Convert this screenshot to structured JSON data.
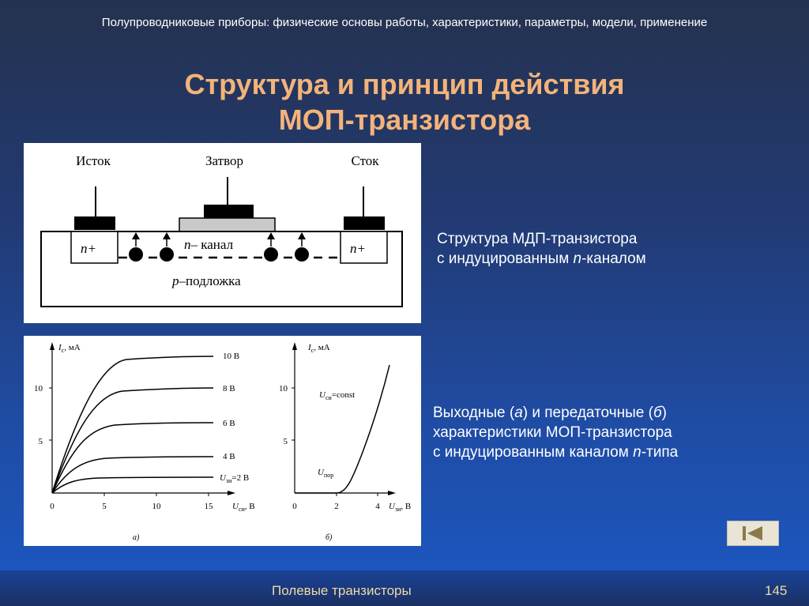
{
  "header": {
    "subtitle": "Полупроводниковые приборы: физические основы работы, характеристики, параметры, модели,  применение"
  },
  "title": {
    "line1": "Структура и принцип действия",
    "line2": "МОП-транзистора"
  },
  "structure": {
    "source_label": "Исток",
    "gate_label": "Затвор",
    "drain_label": "Сток",
    "n_left": "n+",
    "n_right": "n+",
    "channel_n": "n",
    "channel_label": "– канал",
    "substrate_p": "p",
    "substrate_label": "–подложка"
  },
  "caption1": {
    "line1": "Структура МДП-транзистора",
    "line2_prefix": "с индуцированным ",
    "line2_italic": "n",
    "line2_suffix": "-каналом"
  },
  "caption2": {
    "line1_prefix": "Выходные (",
    "line1_a": "а",
    "line1_mid": ") и передаточные (",
    "line1_b": "б",
    "line1_suffix": ")",
    "line2": "характеристики  МОП-транзистора",
    "line3_prefix": "с индуцированным каналом ",
    "line3_italic": "n",
    "line3_suffix": "-типа"
  },
  "graph_a": {
    "y_axis_label": "I",
    "y_axis_sub": "c",
    "y_axis_unit": ", мА",
    "x_axis_label": "U",
    "x_axis_sub": "си",
    "x_axis_unit": ", В",
    "y_ticks": [
      "10",
      "5",
      "0"
    ],
    "x_ticks": [
      "5",
      "10",
      "15"
    ],
    "curve_labels": [
      "10 В",
      "8 В",
      "6 В",
      "4 В"
    ],
    "bottom_curve_label_U": "U",
    "bottom_curve_label_sub": "зи",
    "bottom_curve_label_val": "=2 В",
    "panel_tag": "а)"
  },
  "graph_b": {
    "y_axis_label": "I",
    "y_axis_sub": "c",
    "y_axis_unit": ", мА",
    "x_axis_label": "U",
    "x_axis_sub": "зи",
    "x_axis_unit": ", В",
    "y_ticks": [
      "10",
      "5",
      "0"
    ],
    "x_ticks": [
      "2",
      "4"
    ],
    "const_label_U": "U",
    "const_label_sub": "си",
    "const_label_val": "=const",
    "threshold_U": "U",
    "threshold_sub": "пор",
    "panel_tag": "б)"
  },
  "nav": {
    "icon": "first-slide-icon"
  },
  "footer": {
    "title": "Полевые транзисторы",
    "page": "145"
  }
}
